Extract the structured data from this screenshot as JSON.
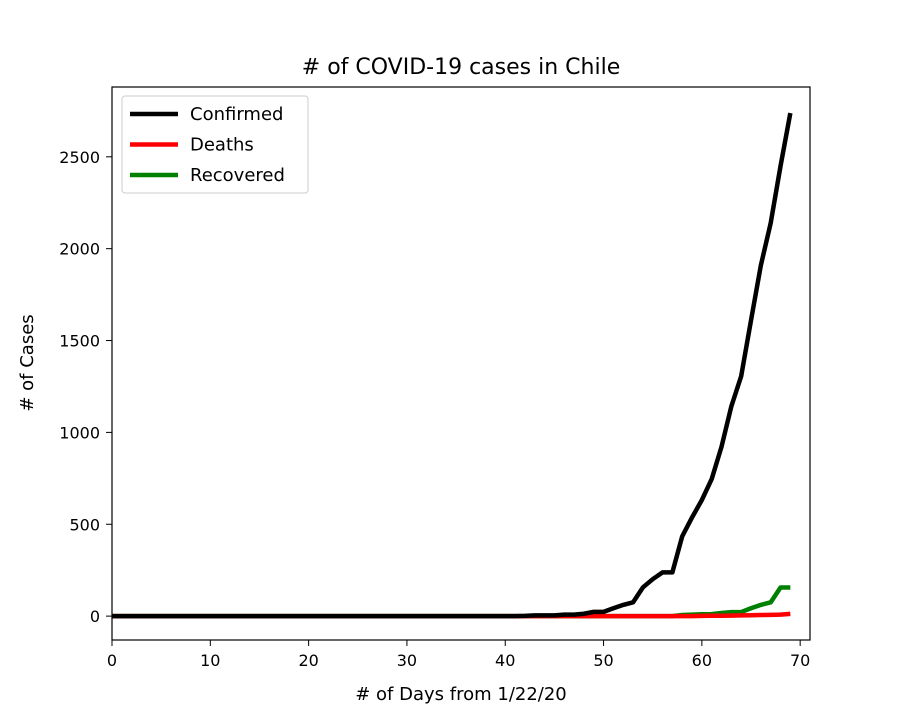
{
  "chart_data": {
    "type": "line",
    "title": "# of COVID-19 cases in Chile",
    "xlabel": "# of Days from 1/22/20",
    "ylabel": "# of Cases",
    "xlim": [
      0,
      71
    ],
    "ylim": [
      -130,
      2880
    ],
    "xticks": [
      0,
      10,
      20,
      30,
      40,
      50,
      60,
      70
    ],
    "yticks": [
      0,
      500,
      1000,
      1500,
      2000,
      2500
    ],
    "grid": false,
    "legend_position": "top-left",
    "series": [
      {
        "name": "Confirmed",
        "color": "#000000",
        "points": [
          [
            0,
            0
          ],
          [
            41,
            0
          ],
          [
            42,
            1
          ],
          [
            43,
            4
          ],
          [
            44,
            4
          ],
          [
            45,
            4
          ],
          [
            46,
            8
          ],
          [
            47,
            8
          ],
          [
            48,
            13
          ],
          [
            49,
            23
          ],
          [
            50,
            23
          ],
          [
            51,
            43
          ],
          [
            52,
            61
          ],
          [
            53,
            75
          ],
          [
            54,
            156
          ],
          [
            55,
            201
          ],
          [
            56,
            238
          ],
          [
            57,
            238
          ],
          [
            58,
            434
          ],
          [
            59,
            537
          ],
          [
            60,
            632
          ],
          [
            61,
            746
          ],
          [
            62,
            922
          ],
          [
            63,
            1142
          ],
          [
            64,
            1306
          ],
          [
            65,
            1610
          ],
          [
            66,
            1909
          ],
          [
            67,
            2139
          ],
          [
            68,
            2449
          ],
          [
            69,
            2738
          ]
        ]
      },
      {
        "name": "Deaths",
        "color": "#ff0000",
        "points": [
          [
            0,
            0
          ],
          [
            59,
            0
          ],
          [
            60,
            1
          ],
          [
            61,
            2
          ],
          [
            62,
            2
          ],
          [
            63,
            3
          ],
          [
            64,
            4
          ],
          [
            65,
            5
          ],
          [
            66,
            6
          ],
          [
            67,
            7
          ],
          [
            68,
            8
          ],
          [
            69,
            12
          ]
        ]
      },
      {
        "name": "Recovered",
        "color": "#008000",
        "points": [
          [
            0,
            0
          ],
          [
            57,
            0
          ],
          [
            58,
            6
          ],
          [
            59,
            8
          ],
          [
            60,
            10
          ],
          [
            61,
            11
          ],
          [
            62,
            17
          ],
          [
            63,
            22
          ],
          [
            64,
            22
          ],
          [
            65,
            43
          ],
          [
            66,
            61
          ],
          [
            67,
            75
          ],
          [
            68,
            156
          ],
          [
            69,
            156
          ]
        ]
      }
    ]
  }
}
